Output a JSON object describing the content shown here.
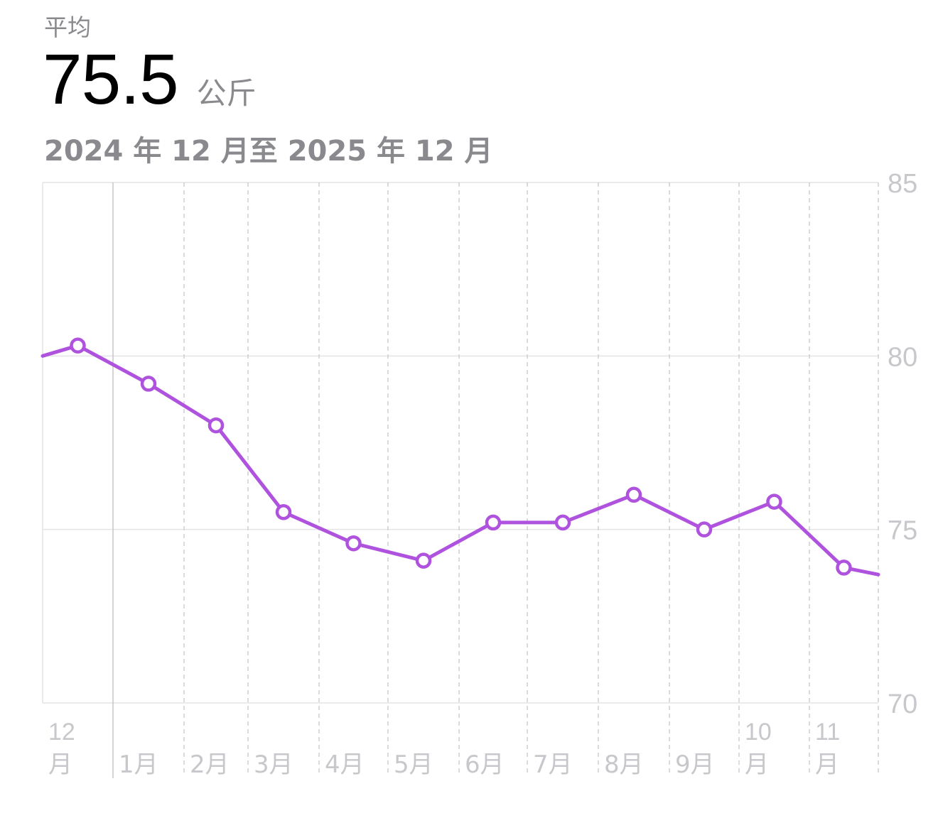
{
  "summary": {
    "label": "平均",
    "value": "75.5",
    "unit": "公斤",
    "range": "2024 年 12 月至 2025 年 12 月"
  },
  "colors": {
    "series": "#af52de",
    "grid": "#e4e4e6",
    "axis_text": "#c7c7cc",
    "secondary_text": "#8a8a8e"
  },
  "chart_data": {
    "type": "line",
    "title": "",
    "xlabel": "",
    "ylabel": "",
    "ylim": [
      70,
      85
    ],
    "y_ticks": [
      "85",
      "80",
      "75",
      "70"
    ],
    "y_axis_side": "right",
    "month_labels": [
      {
        "month": "12",
        "line1": "12",
        "line2": "月"
      },
      {
        "month": "1",
        "line1": "",
        "line2": "1月"
      },
      {
        "month": "2",
        "line1": "",
        "line2": "2月"
      },
      {
        "month": "3",
        "line1": "",
        "line2": "3月"
      },
      {
        "month": "4",
        "line1": "",
        "line2": "4月"
      },
      {
        "month": "5",
        "line1": "",
        "line2": "5月"
      },
      {
        "month": "6",
        "line1": "",
        "line2": "6月"
      },
      {
        "month": "7",
        "line1": "",
        "line2": "7月"
      },
      {
        "month": "8",
        "line1": "",
        "line2": "8月"
      },
      {
        "month": "9",
        "line1": "",
        "line2": "9月"
      },
      {
        "month": "10",
        "line1": "10",
        "line2": "月"
      },
      {
        "month": "11",
        "line1": "11",
        "line2": "月"
      }
    ],
    "series": [
      {
        "values": [
          80.3,
          79.2,
          78.0,
          75.5,
          74.6,
          74.1,
          75.2,
          75.2,
          76.0,
          75.0,
          75.8,
          73.9
        ],
        "start_value": 80.0,
        "end_value": 73.7,
        "markers": "open-circle"
      }
    ],
    "grid": true,
    "legend": "none"
  }
}
